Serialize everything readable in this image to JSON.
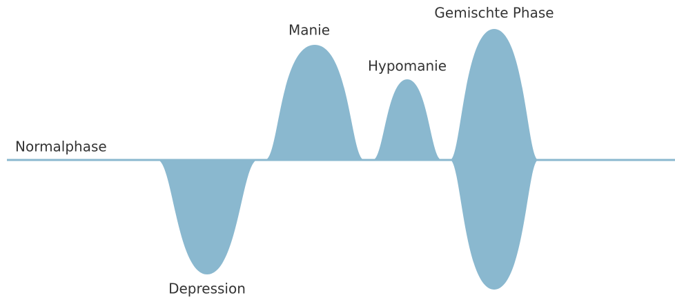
{
  "baseline_label": "Normalphase",
  "phases": [
    {
      "label": "Depression"
    },
    {
      "label": "Manie"
    },
    {
      "label": "Hypomanie"
    },
    {
      "label": "Gemischte Phase"
    }
  ]
}
